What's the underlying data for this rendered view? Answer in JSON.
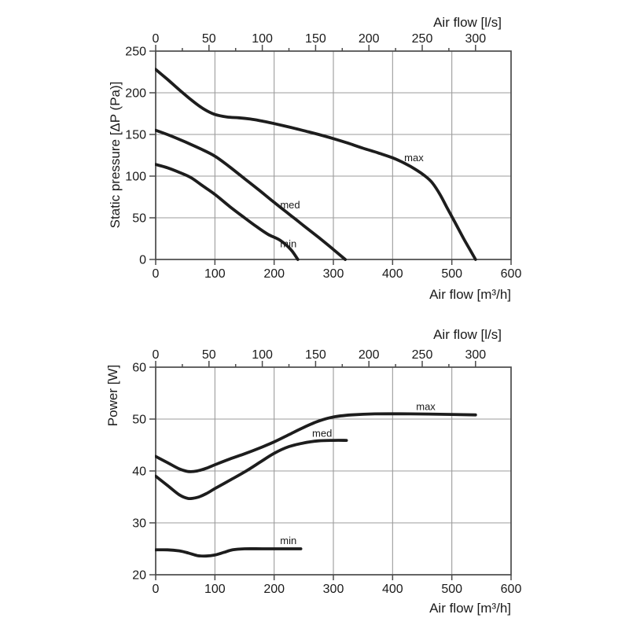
{
  "colors": {
    "curve": "#1d1d1d",
    "grid": "#9b9b9b",
    "axis": "#4a4a4a",
    "text": "#1a1a1a"
  },
  "chart_data": [
    {
      "type": "line",
      "title": "",
      "ylabel": "Static pressure [ΔP (Pa)]",
      "xlabel_bottom": "Air flow [m³/h]",
      "xlabel_top": "Air flow [l/s]",
      "x_bottom": {
        "min": 0,
        "max": 600,
        "ticks": [
          0,
          100,
          200,
          300,
          400,
          500,
          600
        ]
      },
      "x_top": {
        "min": 0,
        "max": 300,
        "ticks": [
          0,
          50,
          100,
          150,
          200,
          250,
          300
        ],
        "minor_step": 25,
        "scale_to_bottom": 1.8
      },
      "y": {
        "min": 0,
        "max": 250,
        "ticks": [
          0,
          50,
          100,
          150,
          200,
          250
        ]
      },
      "grid": "on",
      "series": [
        {
          "name": "max",
          "label_at": [
            436,
            122
          ],
          "points": [
            [
              0,
              228
            ],
            [
              20,
              216
            ],
            [
              40,
              203.5
            ],
            [
              60,
              191.5
            ],
            [
              80,
              181
            ],
            [
              100,
              174
            ],
            [
              120,
              171
            ],
            [
              140,
              170
            ],
            [
              160,
              168.5
            ],
            [
              180,
              166
            ],
            [
              200,
              163
            ],
            [
              225,
              159
            ],
            [
              250,
              154.5
            ],
            [
              275,
              150
            ],
            [
              300,
              145
            ],
            [
              325,
              139.5
            ],
            [
              350,
              133.5
            ],
            [
              375,
              128
            ],
            [
              400,
              122
            ],
            [
              420,
              115.5
            ],
            [
              440,
              107.5
            ],
            [
              455,
              100
            ],
            [
              467,
              92
            ],
            [
              480,
              78
            ],
            [
              492,
              62
            ],
            [
              505,
              45
            ],
            [
              520,
              25
            ],
            [
              532,
              10
            ],
            [
              540,
              0
            ]
          ]
        },
        {
          "name": "med",
          "label_at": [
            227,
            65.5
          ],
          "points": [
            [
              0,
              155
            ],
            [
              25,
              148.5
            ],
            [
              50,
              141
            ],
            [
              75,
              133
            ],
            [
              100,
              124
            ],
            [
              125,
              111
            ],
            [
              150,
              97
            ],
            [
              175,
              83
            ],
            [
              200,
              68.5
            ],
            [
              225,
              54.5
            ],
            [
              250,
              40.5
            ],
            [
              275,
              26.5
            ],
            [
              300,
              12
            ],
            [
              320,
              0
            ]
          ]
        },
        {
          "name": "min",
          "label_at": [
            224,
            19
          ],
          "points": [
            [
              0,
              114
            ],
            [
              20,
              110
            ],
            [
              40,
              104.5
            ],
            [
              60,
              98
            ],
            [
              80,
              88
            ],
            [
              100,
              78
            ],
            [
              125,
              63.5
            ],
            [
              150,
              50
            ],
            [
              170,
              39.5
            ],
            [
              190,
              30
            ],
            [
              210,
              23
            ],
            [
              228,
              12
            ],
            [
              240,
              0
            ]
          ]
        }
      ]
    },
    {
      "type": "line",
      "title": "",
      "ylabel": "Power [W]",
      "xlabel_bottom": "Air flow [m³/h]",
      "xlabel_top": "Air flow [l/s]",
      "x_bottom": {
        "min": 0,
        "max": 600,
        "ticks": [
          0,
          100,
          200,
          300,
          400,
          500,
          600
        ]
      },
      "x_top": {
        "min": 0,
        "max": 300,
        "ticks": [
          0,
          50,
          100,
          150,
          200,
          250,
          300
        ],
        "minor_step": 25,
        "scale_to_bottom": 1.8
      },
      "y": {
        "min": 20,
        "max": 60,
        "ticks": [
          20,
          30,
          40,
          50,
          60
        ]
      },
      "grid": "on",
      "series": [
        {
          "name": "max",
          "label_at": [
            456,
            52.4
          ],
          "points": [
            [
              0,
              42.8
            ],
            [
              20,
              41.6
            ],
            [
              40,
              40.4
            ],
            [
              55,
              39.9
            ],
            [
              70,
              40
            ],
            [
              85,
              40.5
            ],
            [
              100,
              41.2
            ],
            [
              125,
              42.3
            ],
            [
              150,
              43.3
            ],
            [
              175,
              44.4
            ],
            [
              200,
              45.6
            ],
            [
              225,
              47
            ],
            [
              250,
              48.4
            ],
            [
              275,
              49.6
            ],
            [
              300,
              50.4
            ],
            [
              330,
              50.8
            ],
            [
              370,
              51
            ],
            [
              430,
              51
            ],
            [
              500,
              50.9
            ],
            [
              540,
              50.8
            ]
          ]
        },
        {
          "name": "med",
          "label_at": [
            281,
            47.3
          ],
          "points": [
            [
              0,
              39
            ],
            [
              20,
              37.2
            ],
            [
              40,
              35.4
            ],
            [
              55,
              34.7
            ],
            [
              70,
              34.9
            ],
            [
              85,
              35.6
            ],
            [
              100,
              36.6
            ],
            [
              125,
              38.2
            ],
            [
              150,
              39.8
            ],
            [
              175,
              41.6
            ],
            [
              200,
              43.4
            ],
            [
              225,
              44.7
            ],
            [
              250,
              45.4
            ],
            [
              275,
              45.8
            ],
            [
              300,
              45.9
            ],
            [
              322,
              45.9
            ]
          ]
        },
        {
          "name": "min",
          "label_at": [
            224,
            26.6
          ],
          "points": [
            [
              0,
              24.8
            ],
            [
              20,
              24.8
            ],
            [
              40,
              24.6
            ],
            [
              55,
              24.2
            ],
            [
              70,
              23.7
            ],
            [
              85,
              23.6
            ],
            [
              100,
              23.8
            ],
            [
              115,
              24.3
            ],
            [
              130,
              24.8
            ],
            [
              150,
              25
            ],
            [
              180,
              25
            ],
            [
              215,
              25
            ],
            [
              245,
              25
            ]
          ]
        }
      ]
    }
  ]
}
